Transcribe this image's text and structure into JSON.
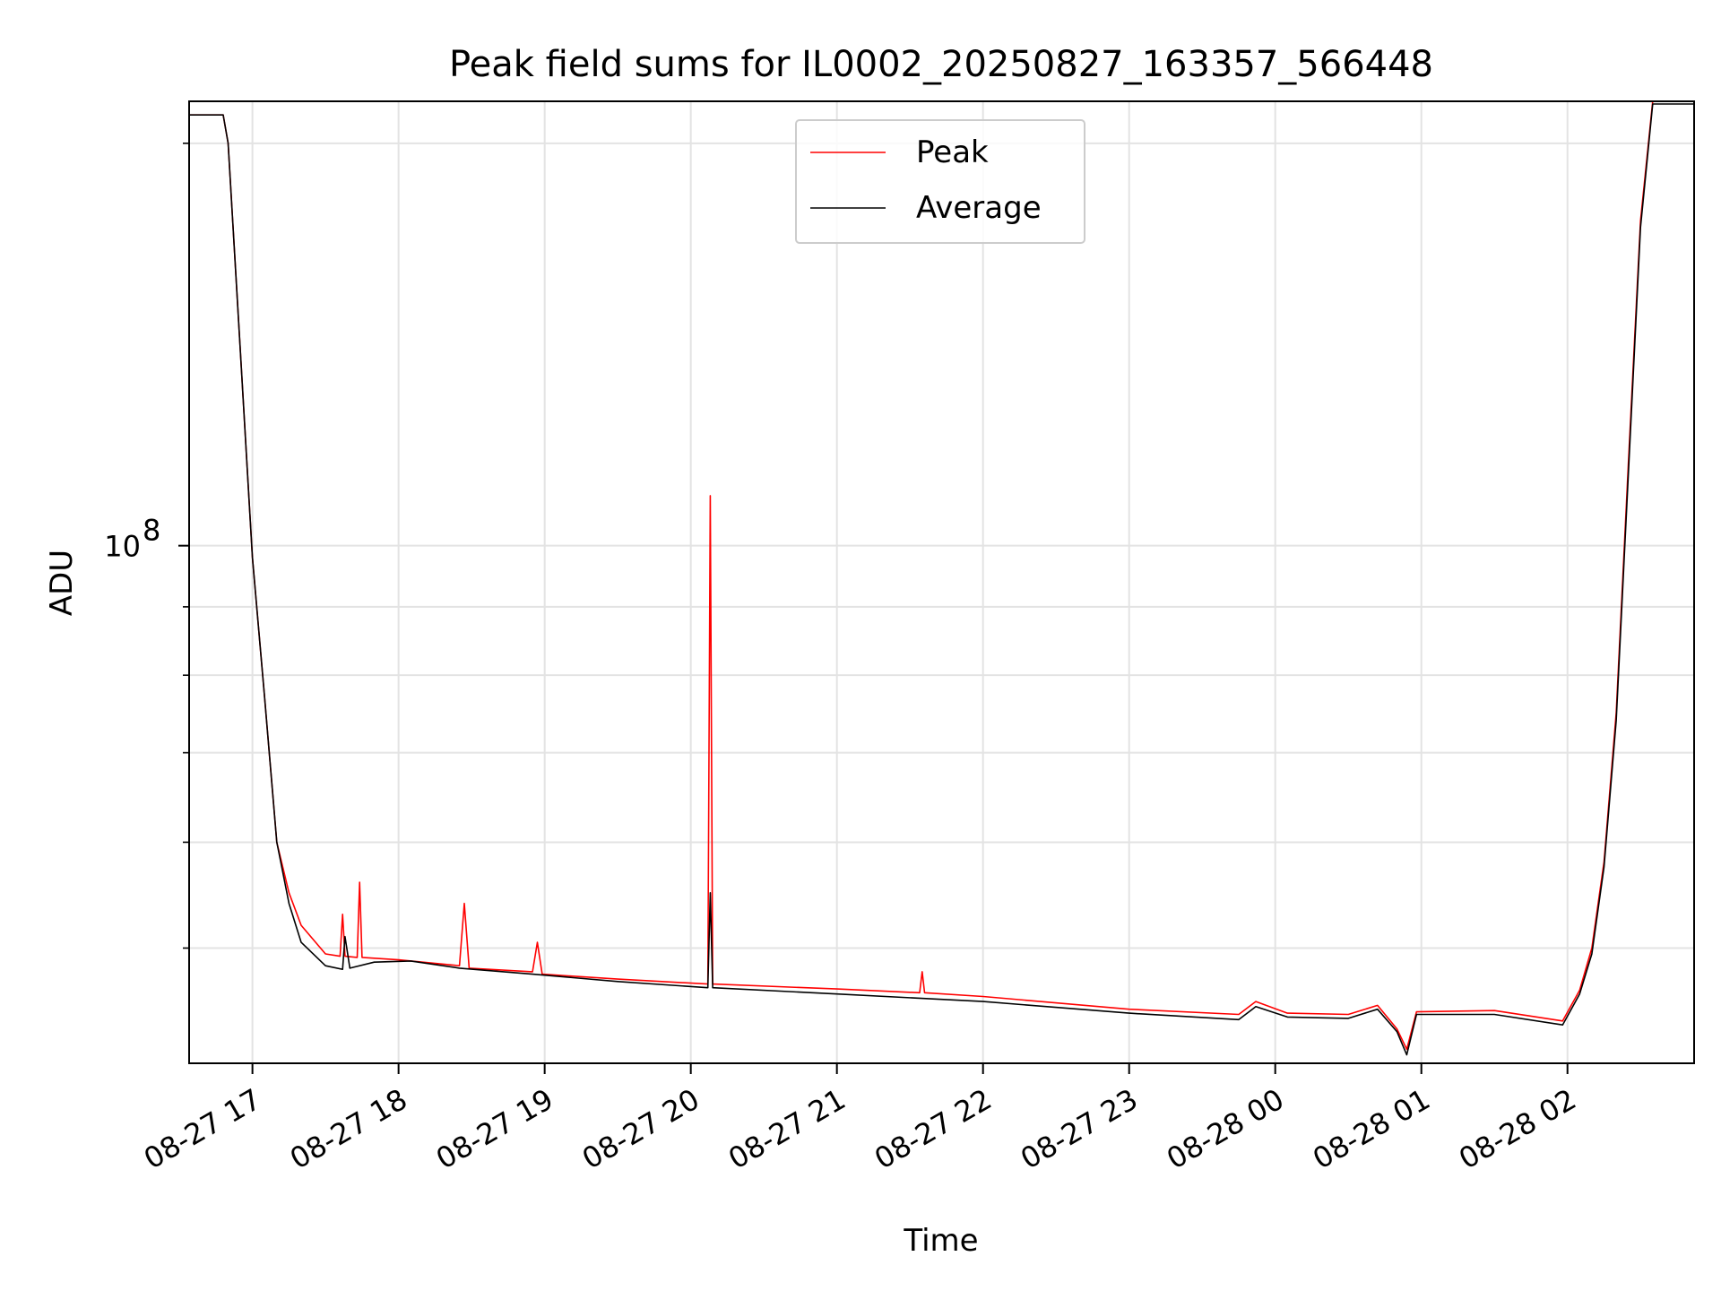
{
  "chart_data": {
    "type": "line",
    "title": "Peak field sums for IL0002_20250827_163357_566448",
    "xlabel": "Time",
    "ylabel": "ADU",
    "yscale": "log",
    "grid": true,
    "legend_position": "top-center",
    "xlim": [
      "2025-08-27 16:34",
      "2025-08-28 02:52"
    ],
    "ylim": [
      41000000.0,
      215000000.0
    ],
    "x_ticks": [
      {
        "x": "2025-08-27 17:00",
        "label": "08-27 17"
      },
      {
        "x": "2025-08-27 18:00",
        "label": "08-27 18"
      },
      {
        "x": "2025-08-27 19:00",
        "label": "08-27 19"
      },
      {
        "x": "2025-08-27 20:00",
        "label": "08-27 20"
      },
      {
        "x": "2025-08-27 21:00",
        "label": "08-27 21"
      },
      {
        "x": "2025-08-27 22:00",
        "label": "08-27 22"
      },
      {
        "x": "2025-08-27 23:00",
        "label": "08-27 23"
      },
      {
        "x": "2025-08-28 00:00",
        "label": "08-28 00"
      },
      {
        "x": "2025-08-28 01:00",
        "label": "08-28 01"
      },
      {
        "x": "2025-08-28 02:00",
        "label": "08-28 02"
      }
    ],
    "y_major_ticks": [
      {
        "y": 100000000,
        "label_base": "10",
        "label_exp": "8"
      }
    ],
    "y_minor_ticks": [
      50000000,
      60000000,
      70000000,
      80000000,
      90000000,
      200000000
    ],
    "series": [
      {
        "name": "Peak",
        "color": "#ff0000",
        "points": [
          [
            "2025-08-27 16:34",
            210000000
          ],
          [
            "2025-08-27 16:48",
            210000000
          ],
          [
            "2025-08-27 16:50",
            200000000
          ],
          [
            "2025-08-27 16:55",
            140000000
          ],
          [
            "2025-08-27 17:00",
            98000000
          ],
          [
            "2025-08-27 17:05",
            77000000
          ],
          [
            "2025-08-27 17:10",
            60000000
          ],
          [
            "2025-08-27 17:15",
            55000000
          ],
          [
            "2025-08-27 17:20",
            52000000
          ],
          [
            "2025-08-27 17:30",
            49500000
          ],
          [
            "2025-08-27 17:36",
            49300000
          ],
          [
            "2025-08-27 17:37",
            53000000
          ],
          [
            "2025-08-27 17:38",
            49300000
          ],
          [
            "2025-08-27 17:43",
            49200000
          ],
          [
            "2025-08-27 17:44",
            56000000
          ],
          [
            "2025-08-27 17:45",
            49200000
          ],
          [
            "2025-08-27 18:00",
            49000000
          ],
          [
            "2025-08-27 18:25",
            48500000
          ],
          [
            "2025-08-27 18:27",
            54000000
          ],
          [
            "2025-08-27 18:29",
            48300000
          ],
          [
            "2025-08-27 18:55",
            48000000
          ],
          [
            "2025-08-27 18:57",
            50500000
          ],
          [
            "2025-08-27 18:59",
            47800000
          ],
          [
            "2025-08-27 19:30",
            47400000
          ],
          [
            "2025-08-27 20:07",
            47000000
          ],
          [
            "2025-08-27 20:08",
            109000000
          ],
          [
            "2025-08-27 20:09",
            47000000
          ],
          [
            "2025-08-27 21:00",
            46600000
          ],
          [
            "2025-08-27 21:34",
            46300000
          ],
          [
            "2025-08-27 21:35",
            48000000
          ],
          [
            "2025-08-27 21:36",
            46300000
          ],
          [
            "2025-08-27 22:00",
            46000000
          ],
          [
            "2025-08-27 23:00",
            45000000
          ],
          [
            "2025-08-27 23:45",
            44600000
          ],
          [
            "2025-08-27 23:52",
            45600000
          ],
          [
            "2025-08-28 00:05",
            44700000
          ],
          [
            "2025-08-28 00:30",
            44600000
          ],
          [
            "2025-08-28 00:42",
            45300000
          ],
          [
            "2025-08-28 00:50",
            43500000
          ],
          [
            "2025-08-28 00:54",
            42000000
          ],
          [
            "2025-08-28 00:58",
            44800000
          ],
          [
            "2025-08-28 01:30",
            44900000
          ],
          [
            "2025-08-28 01:58",
            44100000
          ],
          [
            "2025-08-28 02:05",
            46500000
          ],
          [
            "2025-08-28 02:10",
            50000000
          ],
          [
            "2025-08-28 02:15",
            58000000
          ],
          [
            "2025-08-28 02:20",
            75000000
          ],
          [
            "2025-08-28 02:25",
            115000000
          ],
          [
            "2025-08-28 02:30",
            175000000
          ],
          [
            "2025-08-28 02:35",
            215000000
          ],
          [
            "2025-08-28 02:52",
            215000000
          ]
        ]
      },
      {
        "name": "Average",
        "color": "#000000",
        "points": [
          [
            "2025-08-27 16:34",
            210000000
          ],
          [
            "2025-08-27 16:48",
            210000000
          ],
          [
            "2025-08-27 16:50",
            200000000
          ],
          [
            "2025-08-27 16:55",
            140000000
          ],
          [
            "2025-08-27 17:00",
            98000000
          ],
          [
            "2025-08-27 17:05",
            77000000
          ],
          [
            "2025-08-27 17:10",
            60000000
          ],
          [
            "2025-08-27 17:15",
            54000000
          ],
          [
            "2025-08-27 17:20",
            50500000
          ],
          [
            "2025-08-27 17:30",
            48500000
          ],
          [
            "2025-08-27 17:37",
            48200000
          ],
          [
            "2025-08-27 17:38",
            51000000
          ],
          [
            "2025-08-27 17:40",
            48300000
          ],
          [
            "2025-08-27 17:50",
            48800000
          ],
          [
            "2025-08-27 18:05",
            48900000
          ],
          [
            "2025-08-27 18:25",
            48300000
          ],
          [
            "2025-08-27 18:55",
            47800000
          ],
          [
            "2025-08-27 19:30",
            47200000
          ],
          [
            "2025-08-27 20:07",
            46700000
          ],
          [
            "2025-08-27 20:08",
            55000000
          ],
          [
            "2025-08-27 20:09",
            46700000
          ],
          [
            "2025-08-27 21:00",
            46200000
          ],
          [
            "2025-08-27 22:00",
            45600000
          ],
          [
            "2025-08-27 23:00",
            44700000
          ],
          [
            "2025-08-27 23:45",
            44200000
          ],
          [
            "2025-08-27 23:52",
            45200000
          ],
          [
            "2025-08-28 00:05",
            44400000
          ],
          [
            "2025-08-28 00:30",
            44300000
          ],
          [
            "2025-08-28 00:42",
            45000000
          ],
          [
            "2025-08-28 00:50",
            43300000
          ],
          [
            "2025-08-28 00:54",
            41600000
          ],
          [
            "2025-08-28 00:58",
            44600000
          ],
          [
            "2025-08-28 01:30",
            44600000
          ],
          [
            "2025-08-28 01:58",
            43800000
          ],
          [
            "2025-08-28 02:05",
            46200000
          ],
          [
            "2025-08-28 02:10",
            49500000
          ],
          [
            "2025-08-28 02:15",
            57500000
          ],
          [
            "2025-08-28 02:20",
            74000000
          ],
          [
            "2025-08-28 02:25",
            113000000
          ],
          [
            "2025-08-28 02:30",
            173000000
          ],
          [
            "2025-08-28 02:35",
            214000000
          ],
          [
            "2025-08-28 02:52",
            214000000
          ]
        ]
      }
    ]
  }
}
